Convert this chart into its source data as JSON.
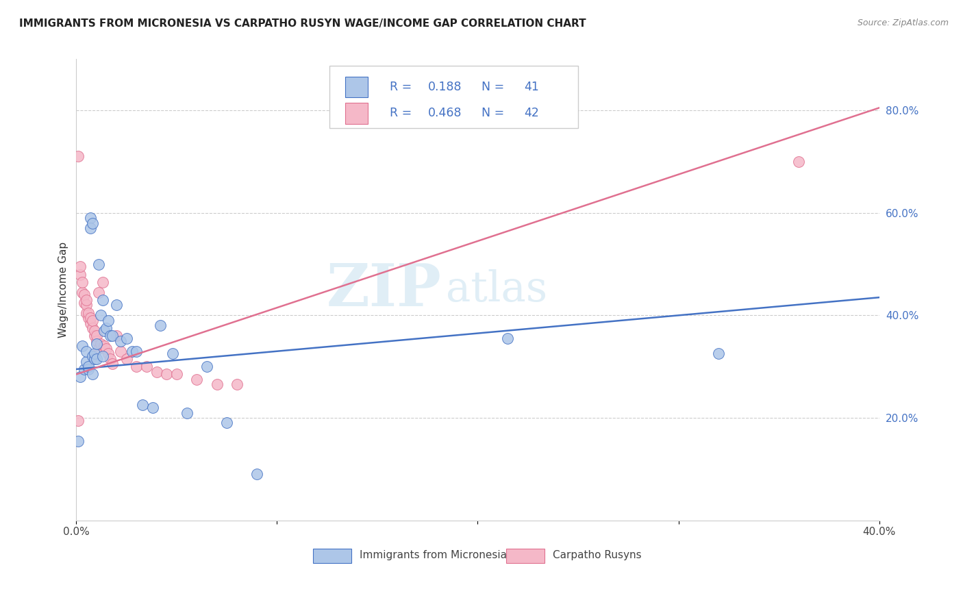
{
  "title": "IMMIGRANTS FROM MICRONESIA VS CARPATHO RUSYN WAGE/INCOME GAP CORRELATION CHART",
  "source": "Source: ZipAtlas.com",
  "ylabel": "Wage/Income Gap",
  "watermark_zip": "ZIP",
  "watermark_atlas": "atlas",
  "blue_R": 0.188,
  "blue_N": 41,
  "pink_R": 0.468,
  "pink_N": 42,
  "blue_color": "#adc6e8",
  "pink_color": "#f5b8c8",
  "blue_line_color": "#4472c4",
  "pink_line_color": "#e07090",
  "legend_blue_label": "Immigrants from Micronesia",
  "legend_pink_label": "Carpatho Rusyns",
  "xlim": [
    0.0,
    0.4
  ],
  "ylim": [
    0.0,
    0.9
  ],
  "y_ticks_right": [
    0.2,
    0.4,
    0.6,
    0.8
  ],
  "y_tick_labels_right": [
    "20.0%",
    "40.0%",
    "60.0%",
    "80.0%"
  ],
  "blue_scatter_x": [
    0.001,
    0.002,
    0.003,
    0.004,
    0.005,
    0.005,
    0.006,
    0.006,
    0.007,
    0.007,
    0.008,
    0.008,
    0.008,
    0.009,
    0.009,
    0.01,
    0.01,
    0.011,
    0.012,
    0.013,
    0.013,
    0.014,
    0.015,
    0.016,
    0.017,
    0.018,
    0.02,
    0.022,
    0.025,
    0.028,
    0.03,
    0.033,
    0.038,
    0.042,
    0.048,
    0.055,
    0.065,
    0.075,
    0.09,
    0.215,
    0.32
  ],
  "blue_scatter_y": [
    0.155,
    0.28,
    0.34,
    0.295,
    0.31,
    0.33,
    0.295,
    0.3,
    0.59,
    0.57,
    0.32,
    0.285,
    0.58,
    0.315,
    0.325,
    0.345,
    0.315,
    0.5,
    0.4,
    0.32,
    0.43,
    0.37,
    0.375,
    0.39,
    0.36,
    0.36,
    0.42,
    0.35,
    0.355,
    0.33,
    0.33,
    0.225,
    0.22,
    0.38,
    0.325,
    0.21,
    0.3,
    0.19,
    0.09,
    0.355,
    0.325
  ],
  "pink_scatter_x": [
    0.001,
    0.002,
    0.002,
    0.003,
    0.003,
    0.004,
    0.004,
    0.005,
    0.005,
    0.005,
    0.006,
    0.006,
    0.007,
    0.007,
    0.008,
    0.008,
    0.009,
    0.009,
    0.01,
    0.01,
    0.011,
    0.011,
    0.012,
    0.013,
    0.014,
    0.015,
    0.016,
    0.017,
    0.018,
    0.02,
    0.022,
    0.025,
    0.03,
    0.035,
    0.04,
    0.045,
    0.05,
    0.06,
    0.07,
    0.08,
    0.001,
    0.36
  ],
  "pink_scatter_y": [
    0.71,
    0.48,
    0.495,
    0.445,
    0.465,
    0.425,
    0.44,
    0.405,
    0.42,
    0.43,
    0.395,
    0.405,
    0.385,
    0.395,
    0.375,
    0.39,
    0.36,
    0.37,
    0.35,
    0.36,
    0.335,
    0.445,
    0.345,
    0.465,
    0.34,
    0.335,
    0.325,
    0.315,
    0.305,
    0.36,
    0.33,
    0.315,
    0.3,
    0.3,
    0.29,
    0.285,
    0.285,
    0.275,
    0.265,
    0.265,
    0.195,
    0.7
  ],
  "blue_line_x0": 0.0,
  "blue_line_y0": 0.295,
  "blue_line_x1": 0.4,
  "blue_line_y1": 0.435,
  "pink_line_x0": 0.0,
  "pink_line_y0": 0.285,
  "pink_line_x1": 0.4,
  "pink_line_y1": 0.805
}
